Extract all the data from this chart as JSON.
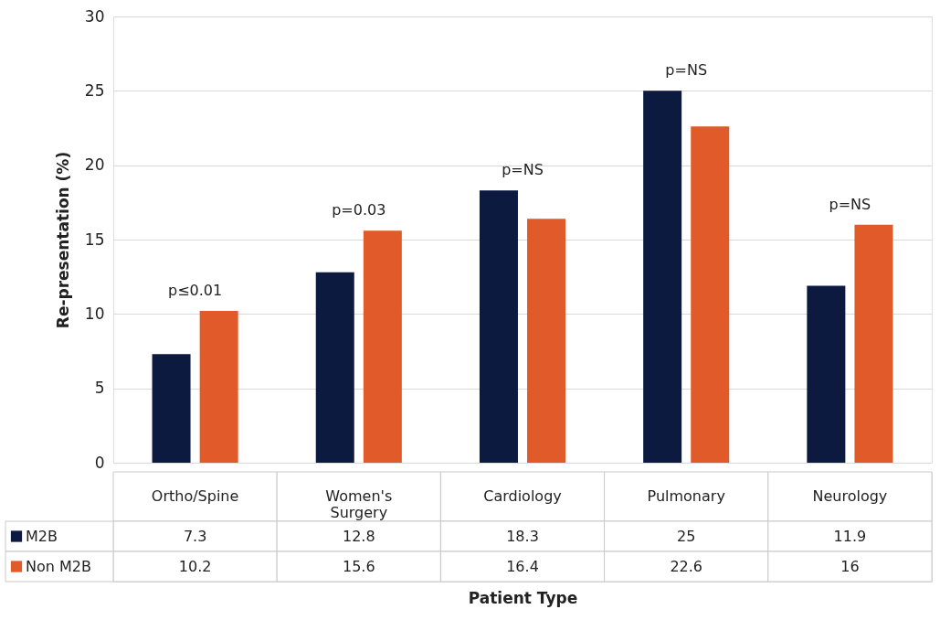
{
  "chart_data": {
    "type": "bar",
    "ylabel": "Re-presentation (%)",
    "xlabel": "Patient Type",
    "categories": [
      "Ortho/Spine",
      "Women's Surgery",
      "Cardiology",
      "Pulmonary",
      "Neurology"
    ],
    "series": [
      {
        "name": "M2B",
        "color": "#0c1a40",
        "values": [
          7.3,
          12.8,
          18.3,
          25,
          11.9
        ]
      },
      {
        "name": "Non M2B",
        "color": "#e05a2a",
        "values": [
          10.2,
          15.6,
          16.4,
          22.6,
          16
        ]
      }
    ],
    "ylim": [
      0,
      30
    ],
    "yticks": [
      0,
      5,
      10,
      15,
      20,
      25,
      30
    ],
    "grid": "y",
    "legend": "bottom",
    "data_labels": true,
    "annotations": [
      "p≤0.01",
      "p=0.03",
      "p=NS",
      "p=NS",
      "p=NS"
    ]
  }
}
